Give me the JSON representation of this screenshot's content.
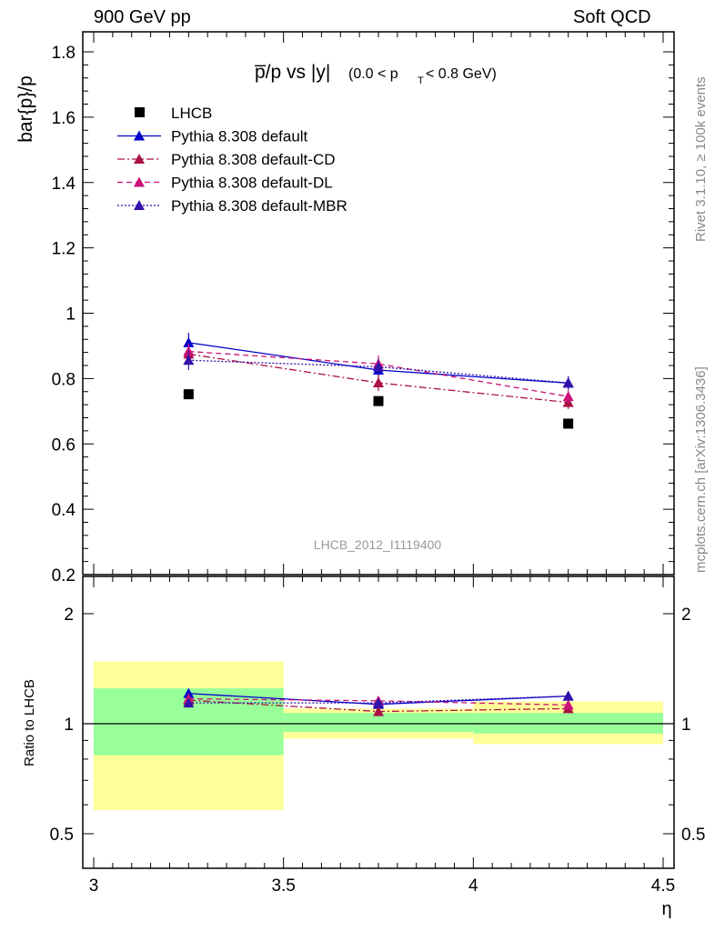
{
  "header": {
    "left": "900 GeV pp",
    "right": "Soft QCD"
  },
  "side_labels": {
    "rivet": "Rivet 3.1.10, ≥ 100k events",
    "mcplots": "mcplots.cern.ch [arXiv:1306.3436]"
  },
  "chart_data": [
    {
      "type": "scatter",
      "title_main": "p̅/p vs |y|",
      "title_cut": "(0.0 < p",
      "title_cut_sub": "T",
      "title_cut_end": " < 0.8 GeV)",
      "ylabel": "bar{p}/p",
      "watermark": "LHCB_2012_I1119400",
      "xlim": [
        3.0,
        4.5
      ],
      "ylim": [
        0.2,
        1.86
      ],
      "yticks": [
        "0.2",
        "0.4",
        "0.6",
        "0.8",
        "1",
        "1.2",
        "1.4",
        "1.6",
        "1.8"
      ],
      "x": [
        3.25,
        3.75,
        4.25
      ],
      "series": [
        {
          "name": "LHCB",
          "color": "#000000",
          "marker": "square",
          "values": [
            0.752,
            0.731,
            0.662
          ]
        },
        {
          "name": "Pythia 8.308 default",
          "color": "#0000cc",
          "marker": "triangle",
          "line": "solid",
          "values": [
            0.91,
            0.826,
            0.786
          ],
          "err": [
            0.03,
            0.025,
            0.02
          ]
        },
        {
          "name": "Pythia 8.308 default-CD",
          "color": "#aa1144",
          "marker": "triangle",
          "line": "dashdot",
          "values": [
            0.875,
            0.787,
            0.727
          ],
          "err": [
            0.025,
            0.025,
            0.02
          ]
        },
        {
          "name": "Pythia 8.308 default-DL",
          "color": "#cc1177",
          "marker": "triangle",
          "line": "dashed",
          "values": [
            0.883,
            0.845,
            0.745
          ],
          "err": [
            0.025,
            0.025,
            0.02
          ]
        },
        {
          "name": "Pythia 8.308 default-MBR",
          "color": "#3311aa",
          "marker": "triangle",
          "line": "dotted",
          "values": [
            0.856,
            0.836,
            0.787
          ],
          "err": [
            0.03,
            0.025,
            0.02
          ]
        }
      ]
    },
    {
      "type": "scatter",
      "ylabel": "Ratio to LHCB",
      "xlabel": "η",
      "xlim": [
        3.0,
        4.5
      ],
      "ylim": [
        0.4,
        2.3
      ],
      "xticks": [
        "3",
        "3.5",
        "4",
        "4.5"
      ],
      "yticks": [
        "0.5",
        "1",
        "2"
      ],
      "bands": [
        {
          "x": [
            3.0,
            3.5
          ],
          "yellow": [
            0.58,
            1.48
          ],
          "green": [
            0.82,
            1.25
          ]
        },
        {
          "x": [
            3.5,
            4.0
          ],
          "yellow": [
            0.91,
            1.1
          ],
          "green": [
            0.95,
            1.07
          ]
        },
        {
          "x": [
            4.0,
            4.5
          ],
          "yellow": [
            0.88,
            1.15
          ],
          "green": [
            0.94,
            1.07
          ]
        }
      ],
      "x": [
        3.25,
        3.75,
        4.25
      ],
      "series": [
        {
          "name": "Pythia 8.308 default",
          "values": [
            1.21,
            1.13,
            1.19
          ]
        },
        {
          "name": "Pythia 8.308 default-CD",
          "values": [
            1.16,
            1.08,
            1.1
          ]
        },
        {
          "name": "Pythia 8.308 default-DL",
          "values": [
            1.17,
            1.155,
            1.125
          ]
        },
        {
          "name": "Pythia 8.308 default-MBR",
          "values": [
            1.14,
            1.14,
            1.19
          ]
        }
      ]
    }
  ]
}
